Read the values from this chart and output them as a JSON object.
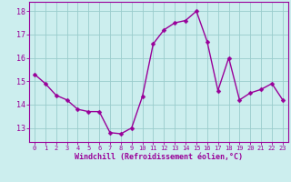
{
  "x": [
    0,
    1,
    2,
    3,
    4,
    5,
    6,
    7,
    8,
    9,
    10,
    11,
    12,
    13,
    14,
    15,
    16,
    17,
    18,
    19,
    20,
    21,
    22,
    23
  ],
  "y": [
    15.3,
    14.9,
    14.4,
    14.2,
    13.8,
    13.7,
    13.7,
    12.8,
    12.75,
    13.0,
    14.35,
    16.6,
    17.2,
    17.5,
    17.6,
    18.0,
    16.7,
    14.6,
    16.0,
    14.2,
    14.5,
    14.65,
    14.9,
    14.2
  ],
  "line_color": "#990099",
  "marker_color": "#990099",
  "bg_color": "#cceeee",
  "grid_color": "#99cccc",
  "xlabel": "Windchill (Refroidissement éolien,°C)",
  "xlabel_color": "#990099",
  "xtick_labels": [
    "0",
    "1",
    "2",
    "3",
    "4",
    "5",
    "6",
    "7",
    "8",
    "9",
    "10",
    "11",
    "12",
    "13",
    "14",
    "15",
    "16",
    "17",
    "18",
    "19",
    "20",
    "21",
    "22",
    "23"
  ],
  "yticks": [
    13,
    14,
    15,
    16,
    17,
    18
  ],
  "ylim": [
    12.4,
    18.4
  ],
  "xlim": [
    -0.5,
    23.5
  ],
  "tick_color": "#990099",
  "spine_color": "#990099",
  "line_width": 1.0,
  "marker_size": 2.5
}
